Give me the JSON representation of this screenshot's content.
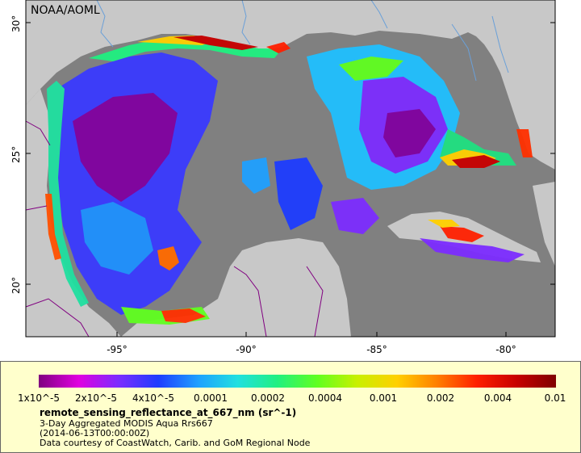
{
  "map": {
    "credit": "NOAA/AOML",
    "lat_ticks": [
      {
        "label": "30°",
        "value": 30
      },
      {
        "label": "25°",
        "value": 25
      },
      {
        "label": "20°",
        "value": 20
      }
    ],
    "lon_ticks": [
      {
        "label": "-95°",
        "value": -95
      },
      {
        "label": "-90°",
        "value": -90
      },
      {
        "label": "-85°",
        "value": -85
      },
      {
        "label": "-80°",
        "value": -80
      }
    ],
    "colors": {
      "land": "#c8c8c8",
      "no_data_ocean": "#808080",
      "borders": "#800080",
      "rivers": "#6aa0d8"
    }
  },
  "legend": {
    "title": "remote_sensing_reflectance_at_667_nm (sr^-1)",
    "line1": "3-Day Aggregated MODIS Aqua Rrs667",
    "line2": "(2014-06-13T00:00:00Z)",
    "line3": "Data courtesy of CoastWatch, Carib. and GoM Regional Node",
    "scale": "log",
    "ticks": [
      "1x10^-5",
      "2x10^-5",
      "4x10^-5",
      "0.0001",
      "0.0002",
      "0.0004",
      "0.001",
      "0.002",
      "0.004",
      "0.01"
    ],
    "tick_values": [
      1e-05,
      2e-05,
      4e-05,
      0.0001,
      0.0002,
      0.0004,
      0.001,
      0.002,
      0.004,
      0.01
    ],
    "colormap": [
      "#800080",
      "#e000e0",
      "#7c2cff",
      "#1e3cff",
      "#1ea0ff",
      "#20e0e0",
      "#20f080",
      "#60ff20",
      "#c8f000",
      "#ffd000",
      "#ff8000",
      "#ff2000",
      "#c80000",
      "#800000"
    ]
  }
}
